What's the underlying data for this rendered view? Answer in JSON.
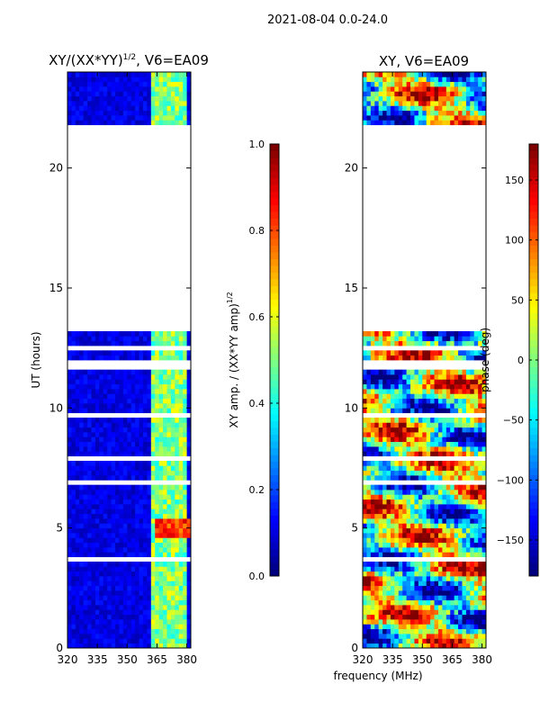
{
  "figure": {
    "suptitle": "2021-08-04 0.0-24.0",
    "xlabel": "frequency (MHz)"
  },
  "colors": {
    "jet": [
      "#00007f",
      "#0000ff",
      "#007fff",
      "#00ffff",
      "#7fff7f",
      "#ffff00",
      "#ff7f00",
      "#ff0000",
      "#7f0000"
    ],
    "frame": "#000000",
    "gap": "#ffffff"
  },
  "chart_data": [
    {
      "type": "heatmap",
      "title_main": "XY/(XX*YY)",
      "title_sup": "1/2",
      "title_tail": ", V6=EA09",
      "xlabel": "",
      "ylabel": "UT (hours)",
      "xlim": [
        320,
        382
      ],
      "ylim": [
        0,
        24
      ],
      "xticks": [
        320,
        335,
        350,
        365,
        380
      ],
      "yticks": [
        0,
        5,
        10,
        15,
        20
      ],
      "data_gap_hours": [
        13.1,
        21.9
      ],
      "rfi_channels_mhz": [
        364,
        366,
        369,
        372,
        375,
        378
      ],
      "colorbar": {
        "label_main": "XY amp. / (XX*YY amp)",
        "label_sup": "1/2",
        "range": [
          0.0,
          1.0
        ],
        "ticks": [
          "0.0",
          "0.2",
          "0.4",
          "0.6",
          "0.8",
          "1.0"
        ],
        "tick_values": [
          0.0,
          0.2,
          0.4,
          0.6,
          0.8,
          1.0
        ]
      }
    },
    {
      "type": "heatmap",
      "title_main": "XY, V6=EA09",
      "xlabel": "frequency (MHz)",
      "ylabel": "",
      "xlim": [
        320,
        382
      ],
      "ylim": [
        0,
        24
      ],
      "xticks": [
        320,
        335,
        350,
        365,
        380
      ],
      "yticks": [
        0,
        5,
        10,
        15,
        20
      ],
      "data_gap_hours": [
        13.1,
        21.9
      ],
      "colorbar": {
        "label_main": "phase (deg)",
        "range": [
          -180,
          180
        ],
        "ticks": [
          "150",
          "100",
          "50",
          "0",
          "−50",
          "−100",
          "−150"
        ],
        "tick_values": [
          150,
          100,
          50,
          0,
          -50,
          -100,
          -150
        ]
      }
    }
  ]
}
